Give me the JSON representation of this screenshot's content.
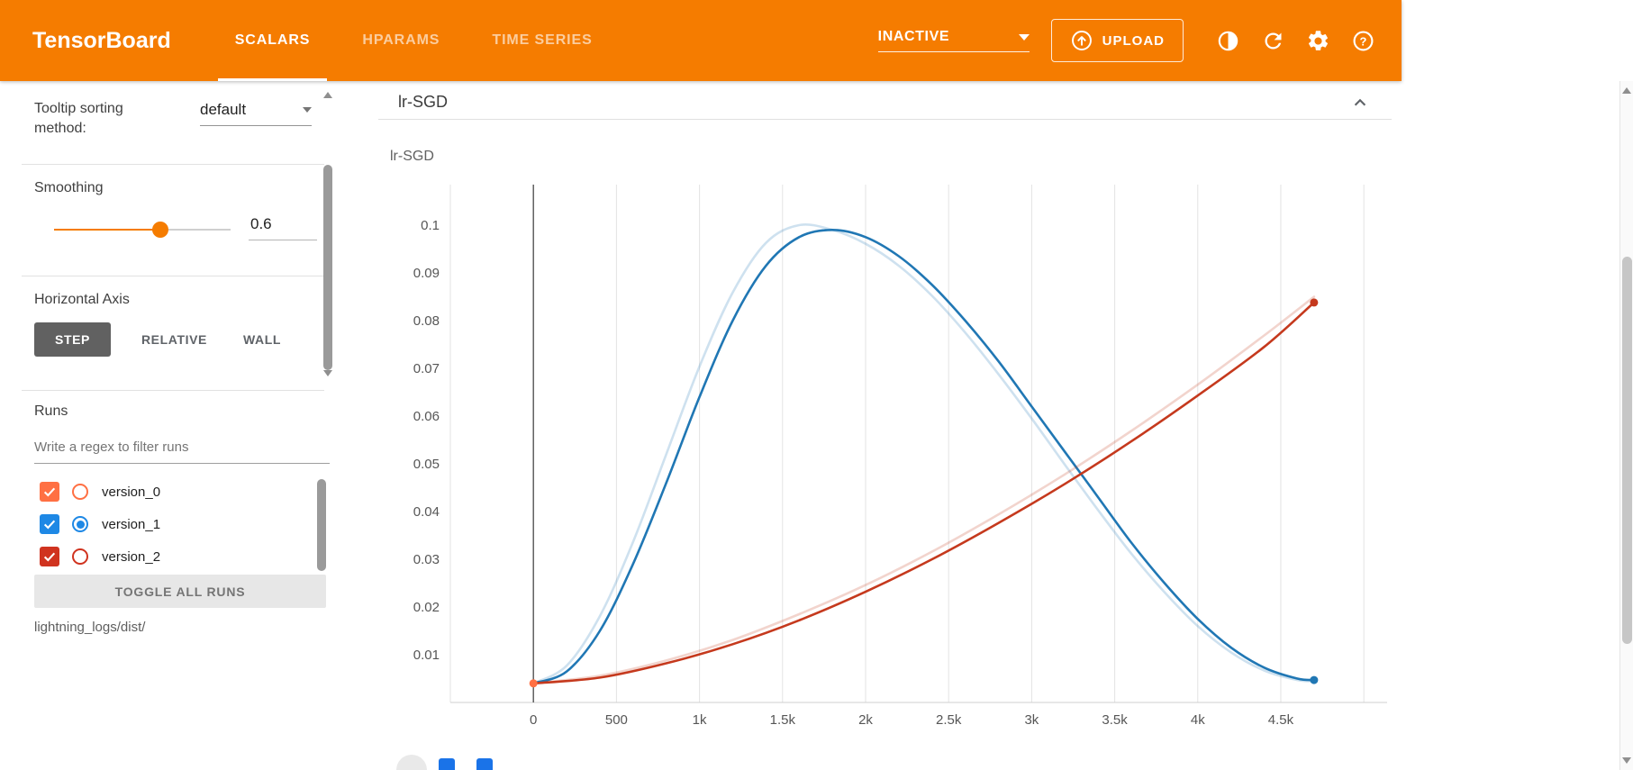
{
  "theme": {
    "header_bg": "#f57c00",
    "accent": "#f57c00"
  },
  "header": {
    "logo": "TensorBoard",
    "tabs": [
      {
        "label": "SCALARS",
        "active": true
      },
      {
        "label": "HPARAMS",
        "active": false
      },
      {
        "label": "TIME SERIES",
        "active": false
      }
    ],
    "status_dropdown": {
      "value": "INACTIVE"
    },
    "upload_button": {
      "label": "UPLOAD"
    },
    "icons": [
      "upload-icon",
      "brightness-icon",
      "refresh-icon",
      "settings-icon",
      "help-icon"
    ]
  },
  "sidebar": {
    "tooltip_sorting": {
      "label": "Tooltip sorting method:",
      "value": "default"
    },
    "smoothing": {
      "label": "Smoothing",
      "value": "0.6",
      "fraction": 0.6
    },
    "horizontal_axis": {
      "label": "Horizontal Axis",
      "options": [
        {
          "label": "STEP",
          "active": true
        },
        {
          "label": "RELATIVE",
          "active": false
        },
        {
          "label": "WALL",
          "active": false
        }
      ]
    },
    "runs": {
      "label": "Runs",
      "filter_placeholder": "Write a regex to filter runs",
      "items": [
        {
          "name": "version_0",
          "checked": true,
          "radio_selected": false,
          "color": "#ff7043"
        },
        {
          "name": "version_1",
          "checked": true,
          "radio_selected": true,
          "color": "#1e88e5"
        },
        {
          "name": "version_2",
          "checked": true,
          "radio_selected": false,
          "color": "#d0331f"
        }
      ],
      "toggle_all_label": "TOGGLE ALL RUNS",
      "log_dir": "lightning_logs/dist/"
    }
  },
  "card": {
    "title": "lr-SGD"
  },
  "chart_data": {
    "type": "line",
    "title": "lr-SGD",
    "xlabel": "",
    "ylabel": "",
    "xlim": [
      -500,
      5140
    ],
    "ylim": [
      0,
      0.1085
    ],
    "grid": "vertical",
    "legend": "none",
    "smoothing": 0.6,
    "x_ticks": [
      {
        "v": 0,
        "label": "0"
      },
      {
        "v": 500,
        "label": "500"
      },
      {
        "v": 1000,
        "label": "1k"
      },
      {
        "v": 1500,
        "label": "1.5k"
      },
      {
        "v": 2000,
        "label": "2k"
      },
      {
        "v": 2500,
        "label": "2.5k"
      },
      {
        "v": 3000,
        "label": "3k"
      },
      {
        "v": 3500,
        "label": "3.5k"
      },
      {
        "v": 4000,
        "label": "4k"
      },
      {
        "v": 4500,
        "label": "4.5k"
      },
      {
        "v": 5000,
        "label": ""
      }
    ],
    "y_ticks": [
      {
        "v": 0.01,
        "label": "0.01"
      },
      {
        "v": 0.02,
        "label": "0.02"
      },
      {
        "v": 0.03,
        "label": "0.03"
      },
      {
        "v": 0.04,
        "label": "0.04"
      },
      {
        "v": 0.05,
        "label": "0.05"
      },
      {
        "v": 0.06,
        "label": "0.06"
      },
      {
        "v": 0.07,
        "label": "0.07"
      },
      {
        "v": 0.08,
        "label": "0.08"
      },
      {
        "v": 0.09,
        "label": "0.09"
      },
      {
        "v": 0.1,
        "label": "0.1"
      }
    ],
    "series": [
      {
        "name": "version_1 (raw)",
        "run": "version_1",
        "kind": "original",
        "color": "#2077b4",
        "opacity": 0.22,
        "points": [
          [
            0,
            0.004
          ],
          [
            200,
            0.0077
          ],
          [
            400,
            0.0181
          ],
          [
            600,
            0.0336
          ],
          [
            800,
            0.052
          ],
          [
            1000,
            0.0704
          ],
          [
            1200,
            0.0859
          ],
          [
            1400,
            0.0963
          ],
          [
            1600,
            0.1
          ],
          [
            1800,
            0.099
          ],
          [
            2000,
            0.0961
          ],
          [
            2200,
            0.0915
          ],
          [
            2400,
            0.0852
          ],
          [
            2600,
            0.0775
          ],
          [
            2800,
            0.0688
          ],
          [
            3000,
            0.0595
          ],
          [
            3200,
            0.0498
          ],
          [
            3400,
            0.0403
          ],
          [
            3600,
            0.0312
          ],
          [
            3800,
            0.0231
          ],
          [
            4000,
            0.016
          ],
          [
            4200,
            0.0105
          ],
          [
            4400,
            0.0067
          ],
          [
            4600,
            0.0047
          ],
          [
            4700,
            0.0045
          ]
        ]
      },
      {
        "name": "version_1 (smoothed)",
        "run": "version_1",
        "kind": "smoothed",
        "color": "#2077b4",
        "opacity": 1,
        "points": [
          [
            0,
            0.004
          ],
          [
            200,
            0.0065
          ],
          [
            400,
            0.015
          ],
          [
            600,
            0.029
          ],
          [
            800,
            0.046
          ],
          [
            1000,
            0.064
          ],
          [
            1200,
            0.08
          ],
          [
            1400,
            0.0915
          ],
          [
            1600,
            0.0975
          ],
          [
            1800,
            0.099
          ],
          [
            2000,
            0.0975
          ],
          [
            2200,
            0.0935
          ],
          [
            2400,
            0.0875
          ],
          [
            2600,
            0.08
          ],
          [
            2800,
            0.0715
          ],
          [
            3000,
            0.062
          ],
          [
            3200,
            0.0525
          ],
          [
            3400,
            0.043
          ],
          [
            3600,
            0.0335
          ],
          [
            3800,
            0.025
          ],
          [
            4000,
            0.0175
          ],
          [
            4200,
            0.0115
          ],
          [
            4400,
            0.0073
          ],
          [
            4600,
            0.005
          ],
          [
            4700,
            0.0047
          ]
        ]
      },
      {
        "name": "version_2 (raw)",
        "run": "version_2",
        "kind": "original",
        "color": "#c5391d",
        "opacity": 0.22,
        "points": [
          [
            0,
            0.004
          ],
          [
            400,
            0.0056
          ],
          [
            800,
            0.0088
          ],
          [
            1200,
            0.0131
          ],
          [
            1600,
            0.0185
          ],
          [
            2000,
            0.0246
          ],
          [
            2400,
            0.0316
          ],
          [
            2800,
            0.0394
          ],
          [
            3200,
            0.0478
          ],
          [
            3600,
            0.0569
          ],
          [
            4000,
            0.0666
          ],
          [
            4400,
            0.0769
          ],
          [
            4700,
            0.085
          ]
        ]
      },
      {
        "name": "version_2 (smoothed)",
        "run": "version_2",
        "kind": "smoothed",
        "color": "#c5391d",
        "opacity": 1,
        "points": [
          [
            0,
            0.004
          ],
          [
            400,
            0.0052
          ],
          [
            800,
            0.0082
          ],
          [
            1200,
            0.0122
          ],
          [
            1600,
            0.0172
          ],
          [
            2000,
            0.0232
          ],
          [
            2400,
            0.03
          ],
          [
            2800,
            0.0376
          ],
          [
            3200,
            0.0458
          ],
          [
            3600,
            0.0547
          ],
          [
            4000,
            0.0643
          ],
          [
            4400,
            0.0745
          ],
          [
            4700,
            0.0838
          ]
        ]
      },
      {
        "name": "version_0",
        "run": "version_0",
        "kind": "smoothed",
        "color": "#ff7043",
        "opacity": 1,
        "points": [
          [
            0,
            0.004
          ]
        ]
      }
    ],
    "end_markers": [
      {
        "x": 0,
        "y": 0.004,
        "color": "#ff7043"
      },
      {
        "x": 4700,
        "y": 0.0838,
        "color": "#c5391d"
      },
      {
        "x": 4700,
        "y": 0.0047,
        "color": "#2077b4"
      }
    ]
  }
}
